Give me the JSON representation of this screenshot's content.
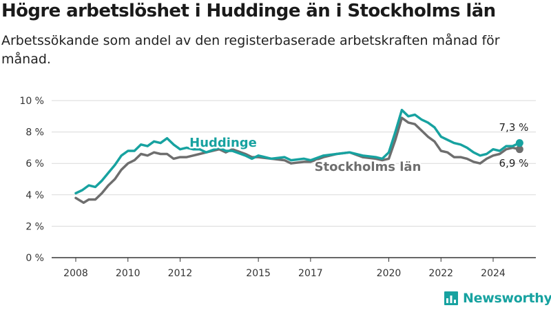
{
  "title": "Högre arbetslöshet i Huddinge än i Stockholms län",
  "subtitle": "Arbetssökande som andel av den registerbaserade arbetskraften månad för månad.",
  "brand": {
    "name": "Newsworthy",
    "icon": "bar-chart-logo-icon"
  },
  "colors": {
    "huddinge": "#17a2a0",
    "stockholm": "#6e6e6e",
    "grid": "#d9d9d9",
    "axis": "#333333"
  },
  "chart_data": {
    "type": "line",
    "title": "Högre arbetslöshet i Huddinge än i Stockholms län",
    "subtitle": "Arbetssökande som andel av den registerbaserade arbetskraften månad för månad.",
    "ylim": [
      0,
      10
    ],
    "xlim": [
      2007.5,
      2025.75
    ],
    "y_ticks": [
      {
        "value": 0,
        "label": "0 %"
      },
      {
        "value": 2,
        "label": "2 %"
      },
      {
        "value": 4,
        "label": "4 %"
      },
      {
        "value": 6,
        "label": "6 %"
      },
      {
        "value": 8,
        "label": "8 %"
      },
      {
        "value": 10,
        "label": "10 %"
      }
    ],
    "x_ticks": [
      {
        "value": 2008,
        "label": "2008"
      },
      {
        "value": 2010,
        "label": "2010"
      },
      {
        "value": 2012,
        "label": "2012"
      },
      {
        "value": 2015,
        "label": "2015"
      },
      {
        "value": 2017,
        "label": "2017"
      },
      {
        "value": 2020,
        "label": "2020"
      },
      {
        "value": 2022,
        "label": "2022"
      },
      {
        "value": 2024,
        "label": "2024"
      }
    ],
    "grid": true,
    "series": [
      {
        "name": "Huddinge",
        "color": "#17a2a0",
        "end_label": "7,3 %",
        "points": [
          [
            2008.0,
            4.1
          ],
          [
            2008.25,
            4.3
          ],
          [
            2008.5,
            4.6
          ],
          [
            2008.75,
            4.5
          ],
          [
            2009.0,
            4.9
          ],
          [
            2009.25,
            5.4
          ],
          [
            2009.5,
            5.9
          ],
          [
            2009.75,
            6.5
          ],
          [
            2010.0,
            6.8
          ],
          [
            2010.25,
            6.8
          ],
          [
            2010.5,
            7.2
          ],
          [
            2010.75,
            7.1
          ],
          [
            2011.0,
            7.4
          ],
          [
            2011.25,
            7.3
          ],
          [
            2011.5,
            7.6
          ],
          [
            2011.75,
            7.2
          ],
          [
            2012.0,
            6.9
          ],
          [
            2012.25,
            7.0
          ],
          [
            2012.5,
            6.9
          ],
          [
            2012.75,
            6.9
          ],
          [
            2013.0,
            6.7
          ],
          [
            2013.5,
            7.0
          ],
          [
            2013.75,
            6.8
          ],
          [
            2014.0,
            6.8
          ],
          [
            2014.5,
            6.5
          ],
          [
            2014.75,
            6.3
          ],
          [
            2015.0,
            6.5
          ],
          [
            2015.5,
            6.3
          ],
          [
            2016.0,
            6.4
          ],
          [
            2016.25,
            6.2
          ],
          [
            2016.75,
            6.3
          ],
          [
            2017.0,
            6.2
          ],
          [
            2017.5,
            6.5
          ],
          [
            2018.0,
            6.6
          ],
          [
            2018.5,
            6.7
          ],
          [
            2019.0,
            6.5
          ],
          [
            2019.5,
            6.4
          ],
          [
            2019.75,
            6.3
          ],
          [
            2020.0,
            6.7
          ],
          [
            2020.25,
            8.0
          ],
          [
            2020.5,
            9.4
          ],
          [
            2020.75,
            9.0
          ],
          [
            2021.0,
            9.1
          ],
          [
            2021.25,
            8.8
          ],
          [
            2021.5,
            8.6
          ],
          [
            2021.75,
            8.3
          ],
          [
            2022.0,
            7.7
          ],
          [
            2022.25,
            7.5
          ],
          [
            2022.5,
            7.3
          ],
          [
            2022.75,
            7.2
          ],
          [
            2023.0,
            7.0
          ],
          [
            2023.25,
            6.7
          ],
          [
            2023.5,
            6.5
          ],
          [
            2023.75,
            6.6
          ],
          [
            2024.0,
            6.9
          ],
          [
            2024.25,
            6.8
          ],
          [
            2024.5,
            7.1
          ],
          [
            2024.75,
            7.1
          ],
          [
            2025.0,
            7.3
          ]
        ]
      },
      {
        "name": "Stockholms län",
        "color": "#6e6e6e",
        "end_label": "6,9 %",
        "points": [
          [
            2008.0,
            3.8
          ],
          [
            2008.3,
            3.5
          ],
          [
            2008.5,
            3.7
          ],
          [
            2008.75,
            3.7
          ],
          [
            2009.0,
            4.1
          ],
          [
            2009.25,
            4.6
          ],
          [
            2009.5,
            5.0
          ],
          [
            2009.75,
            5.6
          ],
          [
            2010.0,
            6.0
          ],
          [
            2010.25,
            6.2
          ],
          [
            2010.5,
            6.6
          ],
          [
            2010.75,
            6.5
          ],
          [
            2011.0,
            6.7
          ],
          [
            2011.25,
            6.6
          ],
          [
            2011.5,
            6.6
          ],
          [
            2011.75,
            6.3
          ],
          [
            2012.0,
            6.4
          ],
          [
            2012.25,
            6.4
          ],
          [
            2012.5,
            6.5
          ],
          [
            2012.75,
            6.6
          ],
          [
            2013.0,
            6.7
          ],
          [
            2013.5,
            6.9
          ],
          [
            2013.75,
            6.7
          ],
          [
            2014.0,
            6.9
          ],
          [
            2014.5,
            6.6
          ],
          [
            2014.75,
            6.4
          ],
          [
            2015.0,
            6.4
          ],
          [
            2015.5,
            6.3
          ],
          [
            2016.0,
            6.2
          ],
          [
            2016.25,
            6.0
          ],
          [
            2016.75,
            6.1
          ],
          [
            2017.0,
            6.1
          ],
          [
            2017.5,
            6.4
          ],
          [
            2018.0,
            6.6
          ],
          [
            2018.5,
            6.7
          ],
          [
            2019.0,
            6.4
          ],
          [
            2019.5,
            6.3
          ],
          [
            2019.75,
            6.2
          ],
          [
            2020.0,
            6.3
          ],
          [
            2020.25,
            7.5
          ],
          [
            2020.5,
            8.9
          ],
          [
            2020.75,
            8.6
          ],
          [
            2021.0,
            8.5
          ],
          [
            2021.25,
            8.1
          ],
          [
            2021.5,
            7.7
          ],
          [
            2021.75,
            7.4
          ],
          [
            2022.0,
            6.8
          ],
          [
            2022.25,
            6.7
          ],
          [
            2022.5,
            6.4
          ],
          [
            2022.75,
            6.4
          ],
          [
            2023.0,
            6.3
          ],
          [
            2023.25,
            6.1
          ],
          [
            2023.5,
            6.0
          ],
          [
            2023.75,
            6.3
          ],
          [
            2024.0,
            6.5
          ],
          [
            2024.25,
            6.6
          ],
          [
            2024.5,
            6.9
          ],
          [
            2024.75,
            7.0
          ],
          [
            2025.0,
            6.9
          ]
        ]
      }
    ]
  }
}
